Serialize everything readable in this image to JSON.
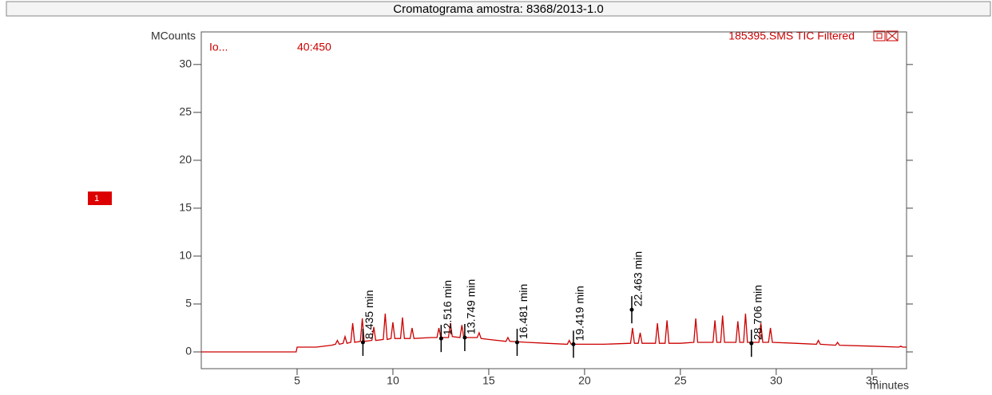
{
  "chart_data": {
    "type": "line",
    "title": "Cromatograma amostra: 8368/2013-1.0",
    "y_label": "MCounts",
    "x_label": "minutes",
    "tags": {
      "ion_prefix": "Io...",
      "ion_range": "40:450",
      "file": "185395.SMS TIC Filtered",
      "trace": "1"
    },
    "xlim": [
      0,
      36.8
    ],
    "ylim": [
      -1.75,
      33.4
    ],
    "xticks": [
      5,
      10,
      15,
      20,
      25,
      30,
      35
    ],
    "yticks": [
      0,
      5,
      10,
      15,
      20,
      25,
      30
    ],
    "series": [
      {
        "name": "TIC",
        "color": "#cc0000",
        "x": [
          0,
          4.95,
          5.0,
          6.0,
          6.8,
          7.0,
          7.1,
          7.2,
          7.4,
          7.5,
          7.6,
          7.8,
          7.9,
          8.0,
          8.3,
          8.4,
          8.5,
          8.9,
          9.0,
          9.1,
          9.5,
          9.6,
          9.7,
          9.9,
          10.0,
          10.1,
          10.4,
          10.5,
          10.6,
          10.9,
          11.0,
          11.1,
          12.0,
          12.3,
          12.4,
          12.5,
          12.9,
          13.0,
          13.1,
          13.5,
          13.6,
          13.7,
          14.4,
          14.5,
          14.6,
          15.0,
          15.9,
          16.0,
          16.1,
          17.0,
          18.0,
          19.1,
          19.2,
          19.3,
          20.0,
          21.0,
          22.4,
          22.5,
          22.6,
          22.8,
          22.9,
          23.0,
          23.7,
          23.8,
          23.9,
          24.2,
          24.3,
          24.4,
          25.0,
          25.7,
          25.8,
          25.9,
          26.7,
          26.8,
          26.9,
          27.1,
          27.2,
          27.3,
          27.9,
          28.0,
          28.1,
          28.3,
          28.4,
          28.5,
          29.1,
          29.2,
          29.3,
          29.6,
          29.7,
          29.8,
          31.0,
          32.1,
          32.2,
          32.3,
          33.1,
          33.2,
          33.3,
          35.0,
          36.4,
          36.5,
          36.6,
          36.8
        ],
        "values": [
          0,
          0,
          0.5,
          0.5,
          0.7,
          0.8,
          1.2,
          0.8,
          0.9,
          1.6,
          0.9,
          1.0,
          3.0,
          1.0,
          1.1,
          3.5,
          1.1,
          1.2,
          2.6,
          1.2,
          1.3,
          4.0,
          1.3,
          1.4,
          3.1,
          1.4,
          1.4,
          3.6,
          1.4,
          1.4,
          2.5,
          1.4,
          1.5,
          1.5,
          2.5,
          1.5,
          1.5,
          3.0,
          1.6,
          1.5,
          2.8,
          1.5,
          1.5,
          2.0,
          1.4,
          1.3,
          1.1,
          1.5,
          1.1,
          1.0,
          0.9,
          0.8,
          1.2,
          0.8,
          0.8,
          0.8,
          0.9,
          2.5,
          0.9,
          0.9,
          2.0,
          0.9,
          0.9,
          3.0,
          0.9,
          0.9,
          3.3,
          0.9,
          0.9,
          1.0,
          3.5,
          1.0,
          1.0,
          3.3,
          1.0,
          1.0,
          3.8,
          1.0,
          1.0,
          3.2,
          1.0,
          1.0,
          4.0,
          1.0,
          1.0,
          3.0,
          1.0,
          1.0,
          2.5,
          1.0,
          0.9,
          0.8,
          1.2,
          0.8,
          0.7,
          1.0,
          0.7,
          0.6,
          0.5,
          0.6,
          0.5,
          0.5
        ]
      }
    ],
    "annotations": [
      {
        "label": "8.435 min",
        "x": 8.435,
        "y": 1.0
      },
      {
        "label": "12.516 min",
        "x": 12.516,
        "y": 1.4
      },
      {
        "label": "13.749 min",
        "x": 13.749,
        "y": 1.5
      },
      {
        "label": "16.481 min",
        "x": 16.481,
        "y": 1.0
      },
      {
        "label": "19.419 min",
        "x": 19.419,
        "y": 0.8
      },
      {
        "label": "22.463 min",
        "x": 22.463,
        "y": 4.4
      },
      {
        "label": "28.706 min",
        "x": 28.706,
        "y": 0.9
      }
    ]
  }
}
